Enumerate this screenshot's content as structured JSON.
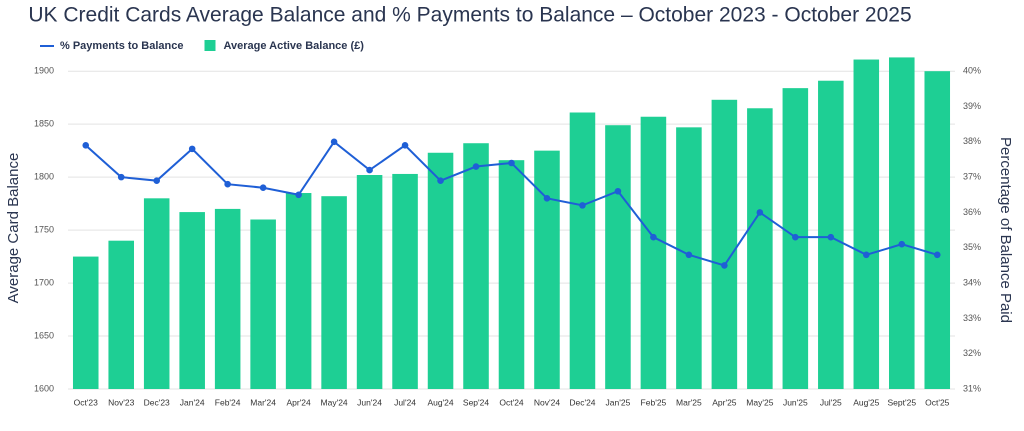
{
  "chart_data": {
    "type": "bar-line",
    "title": "UK Credit Cards Average Balance and % Payments to Balance – October  2023 - October  2025",
    "y_label": "Average Card Balance",
    "y2_label": "Percentage of Balance Paid",
    "categories": [
      "Oct'23",
      "Nov'23",
      "Dec'23",
      "Jan'24",
      "Feb'24",
      "Mar'24",
      "Apr'24",
      "May'24",
      "Jun'24",
      "Jul'24",
      "Aug'24",
      "Sep'24",
      "Oct'24",
      "Nov'24",
      "Dec'24",
      "Jan'25",
      "Feb'25",
      "Mar'25",
      "Apr'25",
      "May'25",
      "Jun'25",
      "Jul'25",
      "Aug'25",
      "Sept'25",
      "Oct'25"
    ],
    "series": [
      {
        "name": "Average Active Balance (£)",
        "type": "bar",
        "color": "#1ecf94",
        "values": [
          1725,
          1740,
          1780,
          1767,
          1770,
          1760,
          1785,
          1782,
          1802,
          1803,
          1823,
          1832,
          1816,
          1825,
          1861,
          1849,
          1857,
          1847,
          1873,
          1865,
          1884,
          1891,
          1911,
          1913,
          1900
        ]
      },
      {
        "name": "% Payments to Balance",
        "type": "line",
        "axis": "y2",
        "color": "#1f5fd6",
        "values": [
          37.9,
          37.0,
          36.9,
          37.8,
          36.8,
          36.7,
          36.5,
          38.0,
          37.2,
          37.9,
          36.9,
          37.3,
          37.4,
          36.4,
          36.2,
          36.6,
          35.3,
          34.8,
          34.5,
          36.0,
          35.3,
          35.3,
          34.8,
          35.1,
          34.8
        ]
      }
    ],
    "ylim": [
      1600,
      1920
    ],
    "yticks": [
      1600,
      1650,
      1700,
      1750,
      1800,
      1850,
      1900
    ],
    "y2lim": [
      31,
      40.6
    ],
    "y2ticks": [
      {
        "value": 31,
        "label": "31%"
      },
      {
        "value": 32,
        "label": "32%"
      },
      {
        "value": 33,
        "label": "33%"
      },
      {
        "value": 34,
        "label": "34%"
      },
      {
        "value": 35,
        "label": "35%"
      },
      {
        "value": 36,
        "label": "36%"
      },
      {
        "value": 37,
        "label": "37%"
      },
      {
        "value": 38,
        "label": "38%"
      },
      {
        "value": 39,
        "label": "39%"
      },
      {
        "value": 40,
        "label": "40%"
      }
    ],
    "grid": true,
    "legend": "top-left"
  }
}
